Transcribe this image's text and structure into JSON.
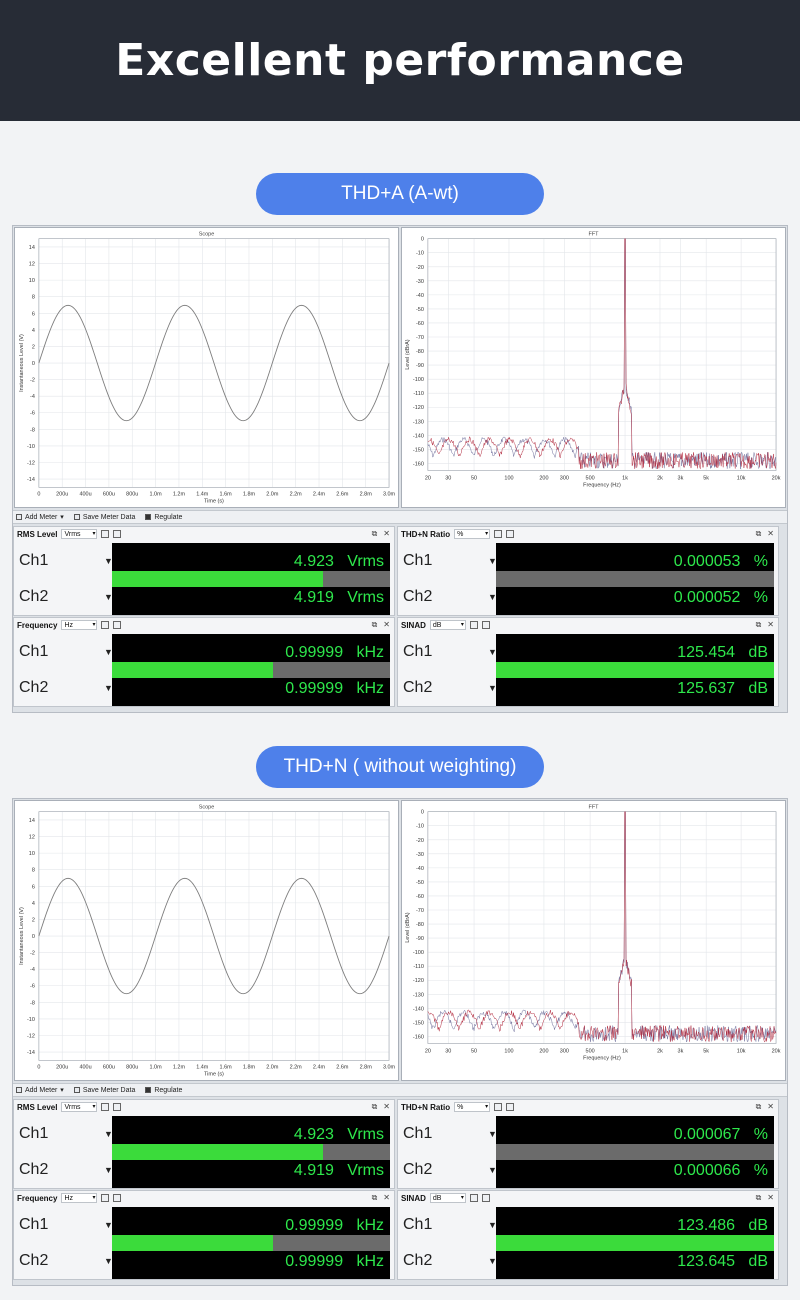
{
  "title": "Excellent performance",
  "colors": {
    "banner": "#272c36",
    "pill": "#4e80ea",
    "meter_text": "#2ee84c",
    "meter_bar": "#3bdb3b",
    "trace_fft": "#b0283c"
  },
  "toolbar": {
    "add_meter": "Add Meter",
    "save_meter": "Save Meter Data",
    "regulate": "Regulate"
  },
  "sections": [
    {
      "label": "THD+A (A-wt)",
      "scope": {
        "title": "Scope",
        "xlabel": "Time (s)",
        "ylabel": "Instantaneous Level (V)"
      },
      "fft": {
        "title": "FFT",
        "xlabel": "Frequency (Hz)",
        "ylabel": "Level (dBrA)"
      },
      "meters": [
        {
          "name": "RMS Level",
          "unit": "Vrms",
          "ch1": {
            "label": "Ch1",
            "value": "4.923",
            "unit": "Vrms",
            "level": 0.76
          },
          "ch2": {
            "label": "Ch2",
            "value": "4.919",
            "unit": "Vrms",
            "level": 0.76
          }
        },
        {
          "name": "THD+N Ratio",
          "unit": "%",
          "ch1": {
            "label": "Ch1",
            "value": "0.000053",
            "unit": "%",
            "level": 0
          },
          "ch2": {
            "label": "Ch2",
            "value": "0.000052",
            "unit": "%",
            "level": 0
          }
        },
        {
          "name": "Frequency",
          "unit": "Hz",
          "ch1": {
            "label": "Ch1",
            "value": "0.99999",
            "unit": "kHz",
            "level": 0.58
          },
          "ch2": {
            "label": "Ch2",
            "value": "0.99999",
            "unit": "kHz",
            "level": 0.58
          }
        },
        {
          "name": "SINAD",
          "unit": "dB",
          "ch1": {
            "label": "Ch1",
            "value": "125.454",
            "unit": "dB",
            "level": 1
          },
          "ch2": {
            "label": "Ch2",
            "value": "125.637",
            "unit": "dB",
            "level": 1
          }
        }
      ]
    },
    {
      "label": "THD+N ( without weighting)",
      "scope": {
        "title": "Scope",
        "xlabel": "Time (s)",
        "ylabel": "Instantaneous Level (V)"
      },
      "fft": {
        "title": "FFT",
        "xlabel": "Frequency (Hz)",
        "ylabel": "Level (dBrA)"
      },
      "meters": [
        {
          "name": "RMS Level",
          "unit": "Vrms",
          "ch1": {
            "label": "Ch1",
            "value": "4.923",
            "unit": "Vrms",
            "level": 0.76
          },
          "ch2": {
            "label": "Ch2",
            "value": "4.919",
            "unit": "Vrms",
            "level": 0.76
          }
        },
        {
          "name": "THD+N Ratio",
          "unit": "%",
          "ch1": {
            "label": "Ch1",
            "value": "0.000067",
            "unit": "%",
            "level": 0
          },
          "ch2": {
            "label": "Ch2",
            "value": "0.000066",
            "unit": "%",
            "level": 0
          }
        },
        {
          "name": "Frequency",
          "unit": "Hz",
          "ch1": {
            "label": "Ch1",
            "value": "0.99999",
            "unit": "kHz",
            "level": 0.58
          },
          "ch2": {
            "label": "Ch2",
            "value": "0.99999",
            "unit": "kHz",
            "level": 0.58
          }
        },
        {
          "name": "SINAD",
          "unit": "dB",
          "ch1": {
            "label": "Ch1",
            "value": "123.486",
            "unit": "dB",
            "level": 1
          },
          "ch2": {
            "label": "Ch2",
            "value": "123.645",
            "unit": "dB",
            "level": 1
          }
        }
      ]
    }
  ],
  "chart_data": [
    {
      "type": "line",
      "title": "Scope",
      "xlabel": "Time (s)",
      "ylabel": "Instantaneous Level (V)",
      "x_ticks": [
        "0",
        "200u",
        "400u",
        "600u",
        "800u",
        "1.0m",
        "1.2m",
        "1.4m",
        "1.6m",
        "1.8m",
        "2.0m",
        "2.2m",
        "2.4m",
        "2.6m",
        "2.8m",
        "3.0m"
      ],
      "y_ticks": [
        "14",
        "12",
        "10",
        "8",
        "6",
        "4",
        "2",
        "0",
        "-2",
        "-4",
        "-6",
        "-8",
        "-10",
        "-12",
        "-14"
      ],
      "xlim": [
        0,
        0.003
      ],
      "ylim": [
        -15,
        15
      ],
      "series": [
        {
          "amplitude_v": 6.96,
          "frequency_hz": 1000
        }
      ]
    },
    {
      "type": "line",
      "title": "FFT",
      "xlabel": "Frequency (Hz)",
      "ylabel": "Level (dBrA)",
      "x_scale": "log",
      "x_ticks": [
        "20",
        "30",
        "50",
        "100",
        "200",
        "300",
        "500",
        "1k",
        "2k",
        "3k",
        "5k",
        "10k",
        "20k"
      ],
      "y_ticks": [
        "0",
        "-10",
        "-20",
        "-30",
        "-40",
        "-50",
        "-60",
        "-70",
        "-80",
        "-90",
        "-100",
        "-110",
        "-120",
        "-130",
        "-140",
        "-150",
        "-160"
      ],
      "xlim": [
        20,
        20000
      ],
      "ylim": [
        -165,
        0
      ],
      "series": [
        {
          "peak_hz": 1000,
          "peak_db": 0,
          "noise_floor_db": -155
        }
      ]
    }
  ]
}
